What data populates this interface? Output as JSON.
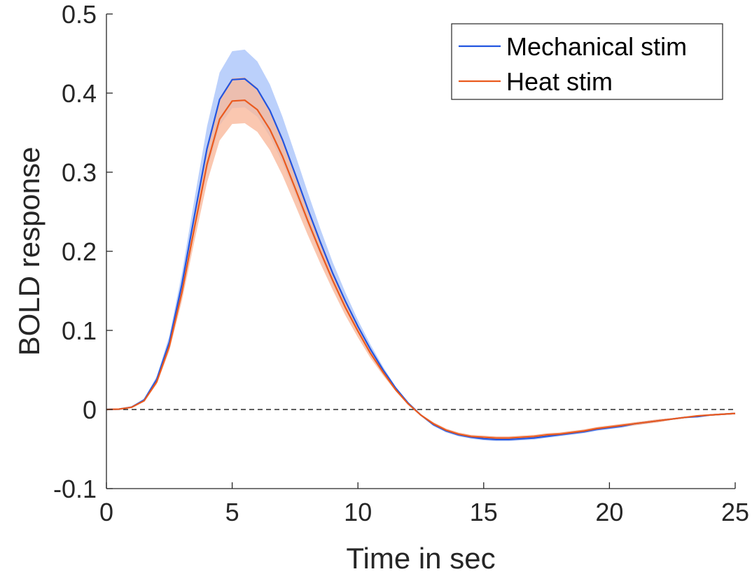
{
  "chart_data": {
    "type": "line",
    "title": "",
    "xlabel": "Time in sec",
    "ylabel": "BOLD response",
    "xlim": [
      0,
      25
    ],
    "ylim": [
      -0.1,
      0.5
    ],
    "xticks": [
      0,
      5,
      10,
      15,
      20,
      25
    ],
    "yticks": [
      -0.1,
      0,
      0.1,
      0.2,
      0.3,
      0.4,
      0.5
    ],
    "xtick_labels": [
      "0",
      "5",
      "10",
      "15",
      "20",
      "25"
    ],
    "ytick_labels": [
      "-0.1",
      "0",
      "0.1",
      "0.2",
      "0.3",
      "0.4",
      "0.5"
    ],
    "grid": false,
    "legend_position": "top-right",
    "zero_line": {
      "y": 0,
      "style": "dashed",
      "color": "#000000"
    },
    "x": [
      0,
      0.5,
      1,
      1.5,
      2,
      2.5,
      3,
      3.5,
      4,
      4.5,
      5,
      5.5,
      6,
      6.5,
      7,
      7.5,
      8,
      8.5,
      9,
      9.5,
      10,
      10.5,
      11,
      11.5,
      12,
      12.5,
      13,
      13.5,
      14,
      14.5,
      15,
      15.5,
      16,
      16.5,
      17,
      17.5,
      18,
      18.5,
      19,
      19.5,
      20,
      20.5,
      21,
      21.5,
      22,
      22.5,
      23,
      23.5,
      24,
      24.5,
      25
    ],
    "series": [
      {
        "name": "Mechanical stim",
        "color": "#2255e0",
        "band_color": "#aac4fa",
        "values": [
          0,
          0.0005,
          0.003,
          0.012,
          0.038,
          0.085,
          0.158,
          0.245,
          0.33,
          0.392,
          0.417,
          0.418,
          0.405,
          0.378,
          0.341,
          0.298,
          0.254,
          0.212,
          0.172,
          0.137,
          0.105,
          0.076,
          0.05,
          0.027,
          0.008,
          -0.007,
          -0.019,
          -0.027,
          -0.032,
          -0.035,
          -0.037,
          -0.038,
          -0.038,
          -0.037,
          -0.036,
          -0.034,
          -0.032,
          -0.03,
          -0.028,
          -0.025,
          -0.023,
          -0.021,
          -0.018,
          -0.016,
          -0.014,
          -0.012,
          -0.01,
          -0.009,
          -0.007,
          -0.006,
          -0.005
        ],
        "upper": [
          0,
          0.0006,
          0.0035,
          0.014,
          0.042,
          0.093,
          0.172,
          0.266,
          0.358,
          0.426,
          0.453,
          0.455,
          0.44,
          0.411,
          0.37,
          0.323,
          0.275,
          0.229,
          0.186,
          0.148,
          0.113,
          0.082,
          0.054,
          0.029,
          0.009,
          -0.006,
          -0.017,
          -0.025,
          -0.03,
          -0.033,
          -0.035,
          -0.036,
          -0.036,
          -0.035,
          -0.034,
          -0.032,
          -0.03,
          -0.028,
          -0.026,
          -0.023,
          -0.021,
          -0.019,
          -0.017,
          -0.015,
          -0.013,
          -0.011,
          -0.009,
          -0.008,
          -0.006,
          -0.005,
          -0.004
        ],
        "lower": [
          0,
          0.0004,
          0.0025,
          0.01,
          0.034,
          0.077,
          0.145,
          0.225,
          0.302,
          0.359,
          0.381,
          0.382,
          0.37,
          0.345,
          0.312,
          0.273,
          0.233,
          0.195,
          0.158,
          0.126,
          0.097,
          0.07,
          0.046,
          0.025,
          0.007,
          -0.008,
          -0.021,
          -0.029,
          -0.034,
          -0.037,
          -0.039,
          -0.04,
          -0.04,
          -0.039,
          -0.038,
          -0.036,
          -0.034,
          -0.032,
          -0.03,
          -0.027,
          -0.025,
          -0.023,
          -0.02,
          -0.018,
          -0.015,
          -0.013,
          -0.011,
          -0.01,
          -0.008,
          -0.007,
          -0.006
        ]
      },
      {
        "name": "Heat stim",
        "color": "#ea5a1e",
        "band_color": "#f9b99c",
        "values": [
          0,
          0.0005,
          0.0028,
          0.011,
          0.035,
          0.08,
          0.148,
          0.23,
          0.31,
          0.367,
          0.39,
          0.391,
          0.379,
          0.354,
          0.32,
          0.28,
          0.239,
          0.2,
          0.163,
          0.129,
          0.099,
          0.071,
          0.047,
          0.025,
          0.007,
          -0.007,
          -0.018,
          -0.026,
          -0.031,
          -0.034,
          -0.035,
          -0.036,
          -0.036,
          -0.035,
          -0.034,
          -0.032,
          -0.031,
          -0.029,
          -0.027,
          -0.024,
          -0.022,
          -0.02,
          -0.018,
          -0.016,
          -0.014,
          -0.012,
          -0.01,
          -0.008,
          -0.007,
          -0.006,
          -0.005
        ],
        "upper": [
          0,
          0.0006,
          0.0031,
          0.012,
          0.038,
          0.086,
          0.159,
          0.247,
          0.333,
          0.394,
          0.419,
          0.42,
          0.407,
          0.38,
          0.344,
          0.301,
          0.257,
          0.215,
          0.175,
          0.139,
          0.107,
          0.077,
          0.051,
          0.027,
          0.008,
          -0.006,
          -0.016,
          -0.024,
          -0.029,
          -0.032,
          -0.033,
          -0.034,
          -0.034,
          -0.033,
          -0.032,
          -0.03,
          -0.029,
          -0.027,
          -0.025,
          -0.022,
          -0.02,
          -0.018,
          -0.016,
          -0.014,
          -0.012,
          -0.011,
          -0.009,
          -0.007,
          -0.006,
          -0.005,
          -0.004
        ],
        "lower": [
          0,
          0.0004,
          0.0025,
          0.01,
          0.032,
          0.074,
          0.137,
          0.213,
          0.287,
          0.34,
          0.361,
          0.362,
          0.351,
          0.328,
          0.296,
          0.259,
          0.221,
          0.185,
          0.151,
          0.119,
          0.091,
          0.065,
          0.043,
          0.023,
          0.006,
          -0.008,
          -0.02,
          -0.028,
          -0.033,
          -0.036,
          -0.037,
          -0.038,
          -0.038,
          -0.037,
          -0.036,
          -0.034,
          -0.033,
          -0.031,
          -0.029,
          -0.026,
          -0.024,
          -0.022,
          -0.02,
          -0.018,
          -0.016,
          -0.013,
          -0.011,
          -0.009,
          -0.008,
          -0.007,
          -0.006
        ]
      }
    ]
  }
}
